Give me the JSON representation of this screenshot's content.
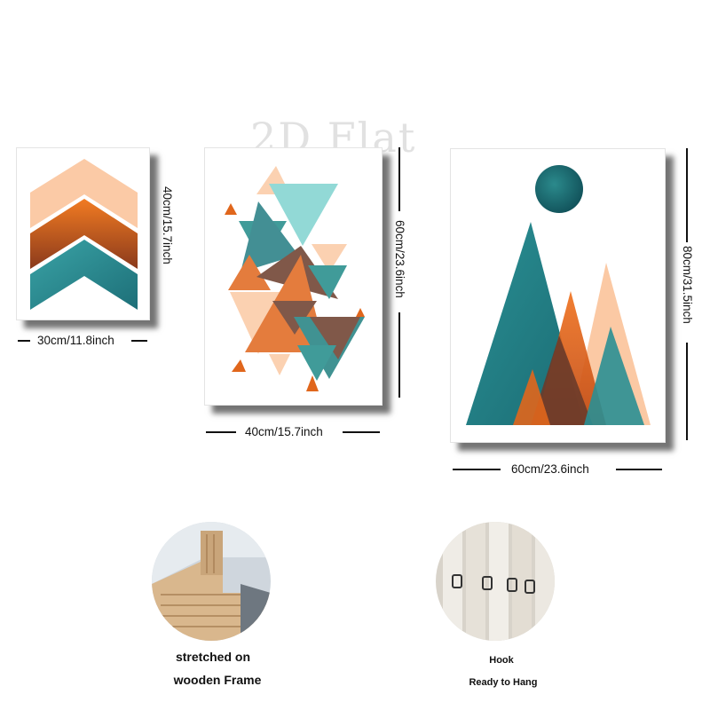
{
  "watermark": "2D Flat",
  "panels": [
    {
      "width_label": "30cm/11.8inch",
      "height_label": "40cm/15.7inch"
    },
    {
      "width_label": "40cm/15.7inch",
      "height_label": "60cm/23.6inch"
    },
    {
      "width_label": "60cm/23.6inch",
      "height_label": "80cm/31.5inch"
    }
  ],
  "frame_detail": {
    "caption_line1": "stretched on",
    "caption_line2": "wooden Frame"
  },
  "hook_detail": {
    "caption_line1": "Hook",
    "caption_line2": "Ready to Hang"
  },
  "colors": {
    "teal": "#1f7f80",
    "orange": "#e0661c",
    "peach": "#fbc9a4",
    "brown": "#6a3b2a",
    "mint": "#7fd3cf"
  }
}
